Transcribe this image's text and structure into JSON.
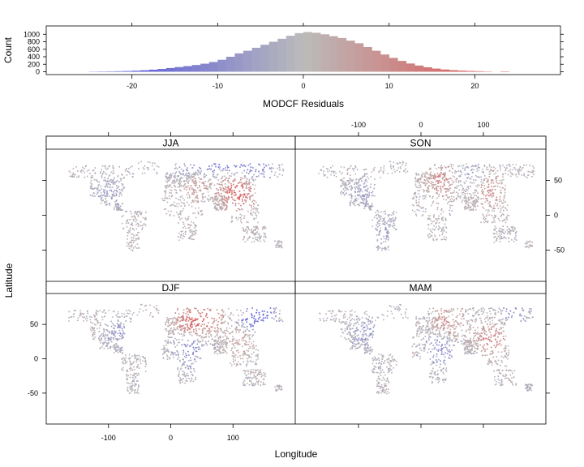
{
  "chart_data": [
    {
      "type": "bar",
      "kind": "histogram",
      "xlabel": "MODCF Residuals",
      "ylabel": "Count",
      "xlim": [
        -30,
        30
      ],
      "ylim": [
        0,
        1100
      ],
      "x_ticks": [
        -20,
        -10,
        0,
        10,
        20
      ],
      "y_ticks": [
        0,
        200,
        400,
        600,
        800,
        1000
      ],
      "bin_width": 1,
      "color_scale": {
        "low": "#5555dd",
        "mid": "#bbbbbb",
        "high": "#dd5555"
      },
      "bins": [
        [
          -25,
          5
        ],
        [
          -24,
          8
        ],
        [
          -23,
          10
        ],
        [
          -22,
          14
        ],
        [
          -21,
          20
        ],
        [
          -20,
          28
        ],
        [
          -19,
          40
        ],
        [
          -18,
          55
        ],
        [
          -17,
          75
        ],
        [
          -16,
          100
        ],
        [
          -15,
          125
        ],
        [
          -14,
          150
        ],
        [
          -13,
          180
        ],
        [
          -12,
          215
        ],
        [
          -11,
          260
        ],
        [
          -10,
          320
        ],
        [
          -9,
          400
        ],
        [
          -8,
          490
        ],
        [
          -7,
          560
        ],
        [
          -6,
          640
        ],
        [
          -5,
          720
        ],
        [
          -4,
          800
        ],
        [
          -3,
          880
        ],
        [
          -2,
          960
        ],
        [
          -1,
          1030
        ],
        [
          0,
          1060
        ],
        [
          1,
          1040
        ],
        [
          2,
          1000
        ],
        [
          3,
          950
        ],
        [
          4,
          900
        ],
        [
          5,
          830
        ],
        [
          6,
          760
        ],
        [
          7,
          660
        ],
        [
          8,
          560
        ],
        [
          9,
          460
        ],
        [
          10,
          370
        ],
        [
          11,
          290
        ],
        [
          12,
          220
        ],
        [
          13,
          165
        ],
        [
          14,
          120
        ],
        [
          15,
          85
        ],
        [
          16,
          60
        ],
        [
          17,
          42
        ],
        [
          18,
          30
        ],
        [
          19,
          22
        ],
        [
          20,
          15
        ],
        [
          21,
          8
        ],
        [
          23,
          10
        ]
      ]
    },
    {
      "type": "scatter",
      "kind": "faceted-map",
      "xlabel": "Longitude",
      "ylabel": "Latitude",
      "xlim": [
        -200,
        200
      ],
      "ylim": [
        -95,
        95
      ],
      "x_ticks": [
        -100,
        0,
        100
      ],
      "y_ticks": [
        -50,
        0,
        50
      ],
      "panels": [
        {
          "name": "JJA",
          "row": 0,
          "col": 0,
          "seed": 11,
          "bias": [
            {
              "lon": 60,
              "lat": 78,
              "value": -18
            },
            {
              "lon": 100,
              "lat": 76,
              "value": -18
            },
            {
              "lon": 140,
              "lat": 74,
              "value": -16
            },
            {
              "lon": 30,
              "lat": 70,
              "value": -14
            },
            {
              "lon": 40,
              "lat": 52,
              "value": 13
            },
            {
              "lon": 110,
              "lat": 30,
              "value": 16
            },
            {
              "lon": 95,
              "lat": 45,
              "value": 12
            },
            {
              "lon": -100,
              "lat": 35,
              "value": -6
            }
          ]
        },
        {
          "name": "SON",
          "row": 0,
          "col": 1,
          "seed": 23,
          "bias": [
            {
              "lon": 30,
              "lat": 50,
              "value": 11
            },
            {
              "lon": 110,
              "lat": 35,
              "value": 12
            },
            {
              "lon": 80,
              "lat": 60,
              "value": -6
            },
            {
              "lon": -90,
              "lat": 35,
              "value": -7
            },
            {
              "lon": -60,
              "lat": -25,
              "value": -6
            }
          ]
        },
        {
          "name": "DJF",
          "row": 1,
          "col": 0,
          "seed": 37,
          "bias": [
            {
              "lon": 30,
              "lat": 55,
              "value": 16
            },
            {
              "lon": 60,
              "lat": 60,
              "value": 14
            },
            {
              "lon": 130,
              "lat": 60,
              "value": -18
            },
            {
              "lon": 150,
              "lat": 72,
              "value": -16
            },
            {
              "lon": 115,
              "lat": 30,
              "value": 9
            },
            {
              "lon": -85,
              "lat": 40,
              "value": -8
            },
            {
              "lon": 30,
              "lat": 15,
              "value": -14
            }
          ]
        },
        {
          "name": "MAM",
          "row": 1,
          "col": 1,
          "seed": 53,
          "bias": [
            {
              "lon": 40,
              "lat": 55,
              "value": 12
            },
            {
              "lon": 110,
              "lat": 30,
              "value": 14
            },
            {
              "lon": 150,
              "lat": 72,
              "value": -12
            },
            {
              "lon": -90,
              "lat": 40,
              "value": -8
            },
            {
              "lon": 30,
              "lat": 15,
              "value": -12
            }
          ]
        }
      ]
    }
  ]
}
